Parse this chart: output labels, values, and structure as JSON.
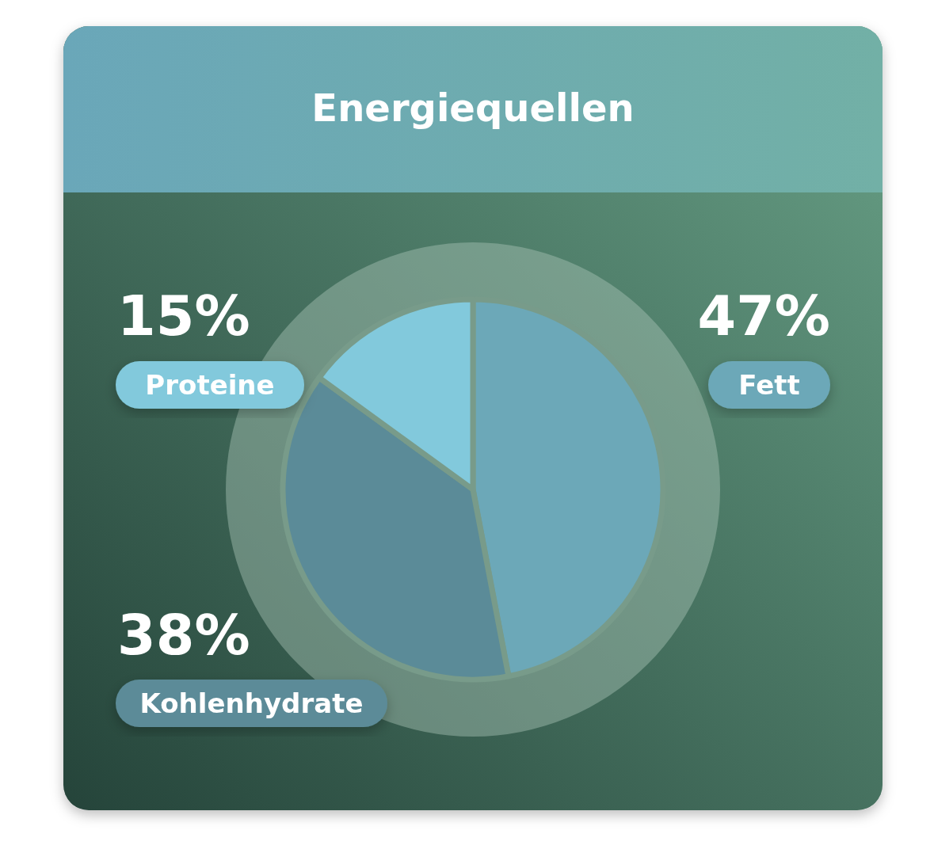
{
  "chart_data": {
    "type": "pie",
    "title": "Energiequellen",
    "categories": [
      "Fett",
      "Kohlenhydrate",
      "Proteine"
    ],
    "values": [
      47,
      38,
      15
    ],
    "colors": [
      "#6ca8b8",
      "#5b8b98",
      "#82c9dc"
    ],
    "value_labels": [
      "47%",
      "38%",
      "15%"
    ]
  }
}
